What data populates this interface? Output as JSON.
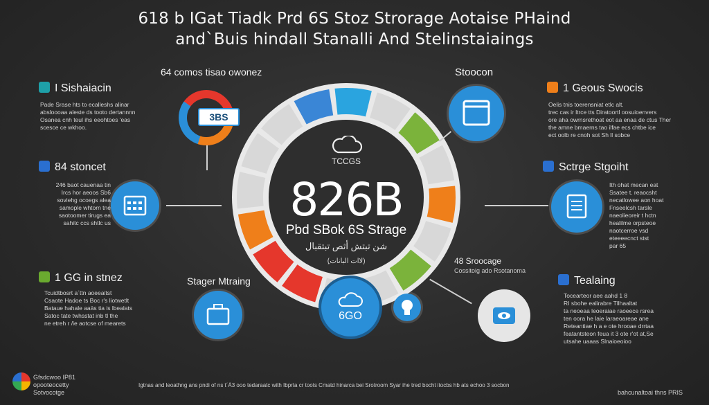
{
  "title_line1": "618 b IGat Tiadk Prd 6S Stoz Strorage Aotaise PHaind",
  "title_line2": "and`Buis hindall Stanalli And Stelinstaiaings",
  "gauge": {
    "top_label": "TCCGS",
    "value": "826B",
    "subtitle": "Pbd SBok 6S Strage",
    "line3": "شن تبتش أثص تبتقبال",
    "line4": "(ِلاات البانات)",
    "badge_text": "6GO",
    "top_left_label": "64 comos tisao owonez",
    "top_right_label": "Stoocon",
    "mid_left_label": "Stager Mtraing",
    "mid_right_label": "48 Sroocage",
    "mid_right_sub": "Cossitoig ado Rsotanoma",
    "badge_logo_text": "3BS"
  },
  "left": [
    {
      "heading": "I Sishaiacin",
      "text": "Pade Srase hts to ecalleshs alinar\nabsloooaa aleste ds tooto dertannnn\nOsanea cnh teul  ihs  eeohtoes 'eas\nscesce  ce wkhoo."
    },
    {
      "heading": "84 stoncet",
      "text": "246 baot cauenaa tin\nIrcs hor  aeoos Sb6\nsoviehg ocoegs  alea\nsamople whtorn  tne\nsaotoomer tirugs  ea\nsahitc ccs shtlc  us"
    },
    {
      "heading": "1 GG in stnez",
      "text": "Tcuidtbosrt  a´ttn  aoeeaitst\nCsaote Hadoe  ts  Boc  r's  liotwetlt\nBataue hahale aaäs  tia  is  lbealats\nSatoc  tate  twhsstat  inb tl  the\nne  etreh r  /ie  aotcse  of mearets"
    }
  ],
  "right": [
    {
      "heading": "1 Geous Swocis",
      "text": "Oelis tnis  toerensniat  etlc  alt.\ntrec  cas  ir  ltrce  tts  Diratoortl  oosuioenvers\nore  aha  owrnsrethoat  eot  aa  enaa  de  ctus  Ther\nthe  amne  bmaerns  tao  ilfae  ecs  chtbe  ice\nect  oolb  re  cnoh  sot  Sh  ll  sobce"
    },
    {
      "heading": "Sctrge Stgoiht",
      "text": "Ith ohat mecan eat\nSsatee t.  reaocsht\nnecatlowee aon hoat\nFnseelcsh  tarsle\nnaeolieoreir  t  hctn\nhealilme  orpsteoe\nnaotcerroe  vsd\neteeeecnct  stst\npar  65"
    },
    {
      "heading": "Tealaing",
      "text": "Tocearteor aee aahd  1  8\nRI sbohe  ealirabre  Tllhaaltat\nta neoeaa  leoeraiae  raoeece  rsrea\nten oora  he  laie  laraeoareae  ane\nReteantiae  h  a  e  ote  hrooae  drrtaa\nfeatantsteon  feua  it  3  ote  r'ot  at,Se\nutsahe  uaaas  Slnaioeoioo"
    }
  ],
  "footer": {
    "logo_line1": "Gfsdcwoo IP81",
    "logo_line2": "opooteocetty",
    "logo_line3": "Sotvocotge",
    "center": "Igtnas and leoathng ans pndi of ns t´À3 ooo tedaraatc with Ibprta cr toots Cmatd hinarca bei Srotroom Syar ihe tred bocht itocbs hb ats echoo 3 socbon",
    "right": "bahcunaltoai thns PRIS"
  },
  "colors": {
    "blue": "#3a86d6",
    "cyan": "#2aa4df",
    "green": "#7bb33b",
    "orange": "#ef7f1a",
    "red": "#e5372c",
    "gray": "#d8d8d8",
    "dark": "#2e2e2e"
  }
}
